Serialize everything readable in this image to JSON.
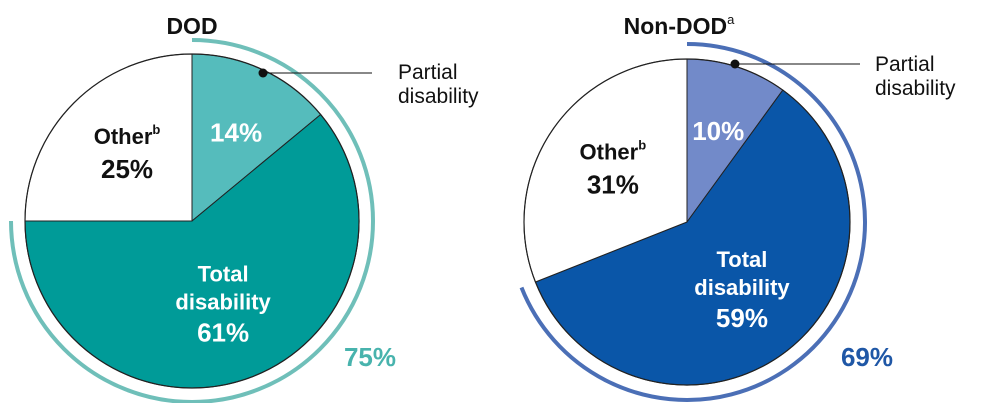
{
  "chart_data": [
    {
      "type": "pie",
      "title": "DOD",
      "title_superscript": "",
      "slices": [
        {
          "label": "Partial disability",
          "value": 14,
          "value_text": "14%",
          "color": "#55bcbc"
        },
        {
          "label": "Total disability",
          "value": 61,
          "value_text": "61%",
          "color": "#009b98"
        },
        {
          "label": "Other",
          "label_superscript": "b",
          "value": 25,
          "value_text": "25%",
          "color": "#ffffff"
        }
      ],
      "outer_arc": {
        "value": 75,
        "value_text": "75%",
        "color": "#6fbfb9"
      },
      "callout": {
        "line1": "Partial",
        "line2": "disability"
      }
    },
    {
      "type": "pie",
      "title": "Non-DOD",
      "title_superscript": "a",
      "slices": [
        {
          "label": "Partial disability",
          "value": 10,
          "value_text": "10%",
          "color": "#728ac9"
        },
        {
          "label": "Total disability",
          "value": 59,
          "value_text": "59%",
          "color": "#0a56a8"
        },
        {
          "label": "Other",
          "label_superscript": "b",
          "value": 31,
          "value_text": "31%",
          "color": "#ffffff"
        }
      ],
      "outer_arc": {
        "value": 69,
        "value_text": "69%",
        "color": "#4b6fb6"
      },
      "callout": {
        "line1": "Partial",
        "line2": "disability"
      }
    }
  ],
  "text_colors": {
    "on_dark": "#ffffff",
    "on_white": "#111111",
    "dod_total": "#48b3ad",
    "nondod_total": "#1f57a6"
  }
}
